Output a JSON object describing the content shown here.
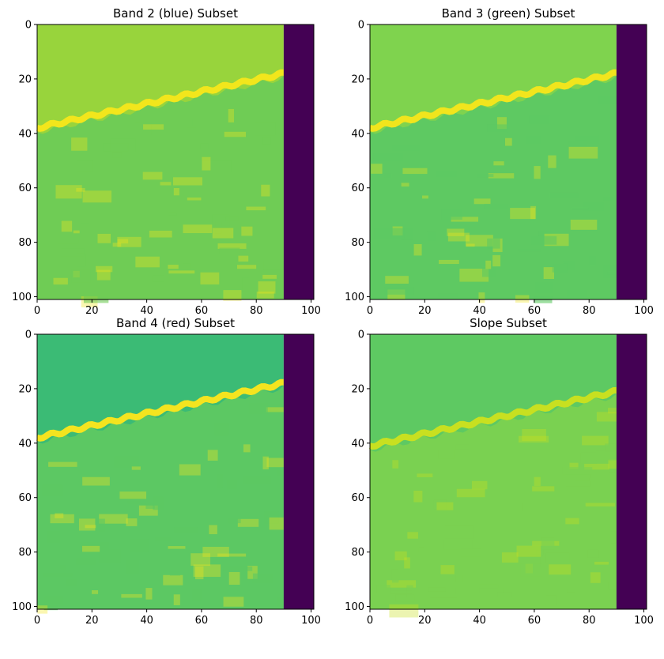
{
  "chart_data": [
    {
      "type": "heatmap",
      "title": "Band 2 (blue) Subset",
      "xlim": [
        0,
        101
      ],
      "ylim": [
        101,
        0
      ],
      "x_ticks": [
        0,
        20,
        40,
        60,
        80,
        100
      ],
      "y_ticks": [
        0,
        20,
        40,
        60,
        80,
        100
      ],
      "colormap": "viridis",
      "nodata_columns_start": 90,
      "shoreline_rows": {
        "x0": 38,
        "x90": 18
      },
      "sea_color": "#98d43c",
      "shore_color": "#f2e61c",
      "land_color": "#6fcc55",
      "nodata_color": "#440154"
    },
    {
      "type": "heatmap",
      "title": "Band 3 (green) Subset",
      "xlim": [
        0,
        101
      ],
      "ylim": [
        101,
        0
      ],
      "x_ticks": [
        0,
        20,
        40,
        60,
        80,
        100
      ],
      "y_ticks": [
        0,
        20,
        40,
        60,
        80,
        100
      ],
      "colormap": "viridis",
      "nodata_columns_start": 90,
      "shoreline_rows": {
        "x0": 38,
        "x90": 18
      },
      "sea_color": "#7fd34e",
      "shore_color": "#f1e51d",
      "land_color": "#5ec962",
      "nodata_color": "#440154"
    },
    {
      "type": "heatmap",
      "title": "Band 4 (red) Subset",
      "xlim": [
        0,
        101
      ],
      "ylim": [
        101,
        0
      ],
      "x_ticks": [
        0,
        20,
        40,
        60,
        80,
        100
      ],
      "y_ticks": [
        0,
        20,
        40,
        60,
        80,
        100
      ],
      "colormap": "viridis",
      "nodata_columns_start": 90,
      "shoreline_rows": {
        "x0": 38,
        "x90": 18
      },
      "sea_color": "#3bbb75",
      "shore_color": "#f4e41f",
      "land_color": "#5cc863",
      "nodata_color": "#440154"
    },
    {
      "type": "heatmap",
      "title": "Slope Subset",
      "xlim": [
        0,
        101
      ],
      "ylim": [
        101,
        0
      ],
      "x_ticks": [
        0,
        20,
        40,
        60,
        80,
        100
      ],
      "y_ticks": [
        0,
        20,
        40,
        60,
        80,
        100
      ],
      "colormap": "viridis",
      "nodata_columns_start": 90,
      "shoreline_rows": {
        "x0": 41,
        "x90": 21
      },
      "sea_color": "#5ec962",
      "shore_color": "#c8e020",
      "land_color": "#7ad151",
      "nodata_color": "#440154"
    }
  ]
}
